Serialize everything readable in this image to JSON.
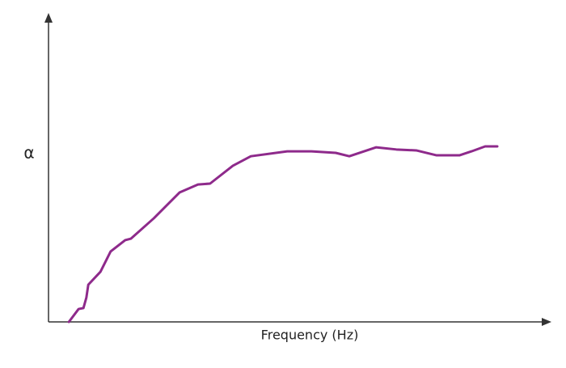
{
  "chart_data": {
    "type": "line",
    "x_label": "Frequency (Hz)",
    "y_label": "α",
    "xlim": [
      0,
      100
    ],
    "ylim": [
      0,
      100
    ],
    "series": [
      {
        "color": "#8e2a8b",
        "x": [
          4.2,
          6.2,
          7.2,
          7.8,
          8.2,
          10.7,
          12.8,
          15.8,
          17,
          21.7,
          27,
          30.8,
          33.3,
          38,
          41.7,
          49.2,
          54.2,
          59.2,
          62,
          67.5,
          71.7,
          75.8,
          80,
          84.7,
          87.2,
          90,
          92.5
        ],
        "values": [
          0,
          4.2,
          4.5,
          7.9,
          12.1,
          16.3,
          22.9,
          26.6,
          27.1,
          33.7,
          42.1,
          44.7,
          45,
          50.8,
          53.9,
          55.5,
          55.5,
          55,
          53.9,
          56.8,
          56.1,
          55.8,
          54.2,
          54.2,
          55.5,
          57.1,
          57.1
        ]
      }
    ]
  }
}
